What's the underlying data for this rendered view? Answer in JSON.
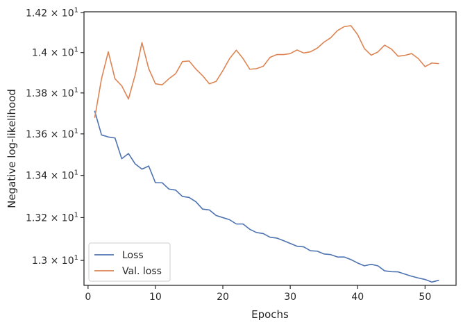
{
  "chart_data": {
    "type": "line",
    "title": "",
    "xlabel": "Epochs",
    "ylabel": "Negative log-likelihood",
    "xlim": [
      -0.6,
      54.6
    ],
    "ylim": [
      12.885,
      14.205
    ],
    "y_scale": "log",
    "grid": false,
    "legend_position": "lower-left",
    "x_ticks": [
      0,
      10,
      20,
      30,
      40,
      50
    ],
    "x_tick_labels": [
      "0",
      "10",
      "20",
      "30",
      "40",
      "50"
    ],
    "y_ticks": [
      13.0,
      13.2,
      13.4,
      13.6,
      13.8,
      14.0,
      14.2
    ],
    "y_tick_labels": [
      {
        "mant": "1.3",
        "base": "10",
        "exp": "1"
      },
      {
        "mant": "1.32",
        "base": "10",
        "exp": "1"
      },
      {
        "mant": "1.34",
        "base": "10",
        "exp": "1"
      },
      {
        "mant": "1.36",
        "base": "10",
        "exp": "1"
      },
      {
        "mant": "1.38",
        "base": "10",
        "exp": "1"
      },
      {
        "mant": "1.4",
        "base": "10",
        "exp": "1"
      },
      {
        "mant": "1.42",
        "base": "10",
        "exp": "1"
      }
    ],
    "x": [
      1,
      2,
      3,
      4,
      5,
      6,
      7,
      8,
      9,
      10,
      11,
      12,
      13,
      14,
      15,
      16,
      17,
      18,
      19,
      20,
      21,
      22,
      23,
      24,
      25,
      26,
      27,
      28,
      29,
      30,
      31,
      32,
      33,
      34,
      35,
      36,
      37,
      38,
      39,
      40,
      41,
      42,
      43,
      44,
      45,
      46,
      47,
      48,
      49,
      50,
      51,
      52
    ],
    "series": [
      {
        "name": "Loss",
        "color": "#4c72b0",
        "values": [
          13.71,
          13.595,
          13.585,
          13.58,
          13.48,
          13.505,
          13.455,
          13.43,
          13.445,
          13.365,
          13.365,
          13.335,
          13.33,
          13.3,
          13.295,
          13.275,
          13.24,
          13.236,
          13.21,
          13.2,
          13.19,
          13.17,
          13.17,
          13.145,
          13.13,
          13.125,
          13.108,
          13.104,
          13.092,
          13.079,
          13.066,
          13.063,
          13.045,
          13.043,
          13.03,
          13.027,
          13.016,
          13.016,
          13.004,
          12.988,
          12.975,
          12.982,
          12.975,
          12.952,
          12.948,
          12.947,
          12.937,
          12.927,
          12.919,
          12.912,
          12.9,
          12.908
        ]
      },
      {
        "name": "Val. loss",
        "color": "#dd8452",
        "values": [
          13.68,
          13.87,
          14.004,
          13.87,
          13.835,
          13.77,
          13.89,
          14.05,
          13.92,
          13.845,
          13.84,
          13.87,
          13.895,
          13.955,
          13.958,
          13.918,
          13.885,
          13.845,
          13.857,
          13.91,
          13.97,
          14.012,
          13.97,
          13.917,
          13.92,
          13.932,
          13.976,
          13.99,
          13.99,
          13.995,
          14.013,
          13.998,
          14.004,
          14.022,
          14.052,
          14.074,
          14.11,
          14.13,
          14.135,
          14.09,
          14.02,
          13.987,
          14.003,
          14.037,
          14.018,
          13.982,
          13.986,
          13.995,
          13.97,
          13.93,
          13.948,
          13.945
        ]
      }
    ]
  }
}
